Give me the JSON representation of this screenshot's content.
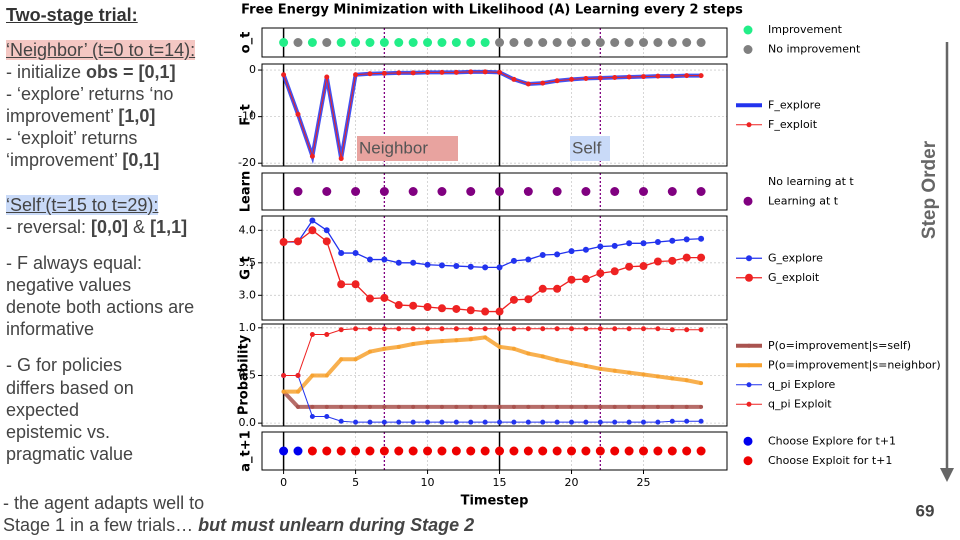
{
  "slide": {
    "lines": [
      {
        "style": "heading",
        "segments": [
          {
            "text": "Two-stage trial:",
            "bold": true
          }
        ]
      },
      {
        "style": "neighbor",
        "segments": [
          {
            "text": "‘Neighbor’ (t=0 to t=14):"
          }
        ]
      },
      {
        "segments": [
          {
            "text": "- initialize "
          },
          {
            "text": "obs = [0,1]",
            "bold": true
          }
        ]
      },
      {
        "segments": [
          {
            "text": "- ‘explore’ returns ‘no"
          }
        ]
      },
      {
        "segments": [
          {
            "text": "improvement’ "
          },
          {
            "text": "[1,0]",
            "bold": true
          }
        ]
      },
      {
        "segments": [
          {
            "text": "- ‘exploit’ returns"
          }
        ]
      },
      {
        "segments": [
          {
            "text": "‘improvement’ "
          },
          {
            "text": "[0,1]",
            "bold": true
          }
        ]
      },
      {
        "style": "self",
        "segments": [
          {
            "text": "‘Self’(t=15 to t=29):"
          }
        ]
      },
      {
        "segments": [
          {
            "text": "- reversal: "
          },
          {
            "text": "[0,0]",
            "bold": true
          },
          {
            "text": " & "
          },
          {
            "text": "[1,1]",
            "bold": true
          }
        ]
      },
      {
        "segments": [
          {
            "text": "- F always equal:"
          }
        ]
      },
      {
        "segments": [
          {
            "text": "negative values"
          }
        ]
      },
      {
        "segments": [
          {
            "text": "denote both actions are"
          }
        ]
      },
      {
        "segments": [
          {
            "text": "informative"
          }
        ]
      },
      {
        "segments": [
          {
            "text": "- G for policies"
          }
        ]
      },
      {
        "segments": [
          {
            "text": "differs based on"
          }
        ]
      },
      {
        "segments": [
          {
            "text": "expected"
          }
        ]
      },
      {
        "segments": [
          {
            "text": "epistemic vs."
          }
        ]
      },
      {
        "segments": [
          {
            "text": "pragmatic value"
          }
        ]
      },
      {
        "segments": [
          {
            "text": "- the agent adapts well to"
          }
        ]
      },
      {
        "segments": [
          {
            "text": "Stage 1 in a few trials… "
          },
          {
            "text": "but must unlearn during Stage 2",
            "bold": true,
            "italic": true
          }
        ]
      }
    ],
    "side_label": "Step Order",
    "page_number": "69"
  },
  "stage_lines": [
    0,
    15
  ],
  "mid_lines": [
    7,
    22
  ],
  "chart_data": [
    {
      "type": "dot",
      "title": "Free Energy Minimization with Likelihood (A) Learning every 2 steps",
      "ylabel": "o_t",
      "xlim": [
        -1.5,
        30.8
      ],
      "xticks": [
        0,
        5,
        10,
        15,
        20,
        25
      ],
      "grid": true,
      "x": [
        0,
        1,
        2,
        3,
        4,
        5,
        6,
        7,
        8,
        9,
        10,
        11,
        12,
        13,
        14,
        15,
        16,
        17,
        18,
        19,
        20,
        21,
        22,
        23,
        24,
        25,
        26,
        27,
        28,
        29
      ],
      "classes": [
        {
          "name": "Improvement",
          "color": "#22ee88"
        },
        {
          "name": "No improvement",
          "color": "#808080"
        }
      ],
      "values": [
        0,
        1,
        0,
        1,
        0,
        0,
        0,
        0,
        0,
        0,
        0,
        0,
        0,
        0,
        0,
        1,
        1,
        1,
        1,
        1,
        1,
        1,
        1,
        1,
        1,
        1,
        1,
        1,
        1,
        1
      ]
    },
    {
      "type": "line",
      "ylabel": "F_t",
      "xlim": [
        -1.5,
        30.8
      ],
      "xticks": [
        0,
        5,
        10,
        15,
        20,
        25
      ],
      "grid": true,
      "ylim": [
        -20.6,
        1.3
      ],
      "yticks": [
        -20,
        -10,
        0
      ],
      "annotations": [
        "Neighbor",
        "Self"
      ],
      "x": [
        0,
        1,
        2,
        3,
        4,
        5,
        6,
        7,
        8,
        9,
        10,
        11,
        12,
        13,
        14,
        15,
        16,
        17,
        18,
        19,
        20,
        21,
        22,
        23,
        24,
        25,
        26,
        27,
        28,
        29
      ],
      "series": [
        {
          "name": "F_explore",
          "color": "#2233ee",
          "width": 4,
          "marker": 0,
          "values": [
            -1,
            -9.5,
            -18.5,
            -1.5,
            -19,
            -1,
            -0.8,
            -0.7,
            -0.6,
            -0.6,
            -0.5,
            -0.5,
            -0.5,
            -0.4,
            -0.4,
            -0.5,
            -2,
            -3,
            -2.8,
            -2.3,
            -2,
            -1.8,
            -1.7,
            -1.6,
            -1.5,
            -1.4,
            -1.3,
            -1.3,
            -1.2,
            -1.2
          ]
        },
        {
          "name": "F_exploit",
          "color": "#ee2222",
          "width": 1,
          "marker": 2.5,
          "values": [
            -1,
            -9.5,
            -18.5,
            -1.5,
            -19,
            -1,
            -0.8,
            -0.7,
            -0.6,
            -0.6,
            -0.5,
            -0.5,
            -0.5,
            -0.4,
            -0.4,
            -0.5,
            -2,
            -3,
            -2.8,
            -2.3,
            -2,
            -1.8,
            -1.7,
            -1.6,
            -1.5,
            -1.4,
            -1.3,
            -1.3,
            -1.2,
            -1.2
          ]
        }
      ]
    },
    {
      "type": "dot",
      "ylabel": "Learn",
      "xlim": [
        -1.5,
        30.8
      ],
      "xticks": [
        0,
        5,
        10,
        15,
        20,
        25
      ],
      "grid": true,
      "x": [
        0,
        1,
        2,
        3,
        4,
        5,
        6,
        7,
        8,
        9,
        10,
        11,
        12,
        13,
        14,
        15,
        16,
        17,
        18,
        19,
        20,
        21,
        22,
        23,
        24,
        25,
        26,
        27,
        28,
        29
      ],
      "classes": [
        {
          "name": "No learning at t",
          "color": "none"
        },
        {
          "name": "Learning at t",
          "color": "#800080"
        }
      ],
      "values": [
        0,
        1,
        0,
        1,
        0,
        1,
        0,
        1,
        0,
        1,
        0,
        1,
        0,
        1,
        0,
        1,
        0,
        1,
        0,
        1,
        0,
        1,
        0,
        1,
        0,
        1,
        0,
        1,
        0,
        1
      ]
    },
    {
      "type": "line",
      "ylabel": "G_t",
      "xlim": [
        -1.5,
        30.8
      ],
      "xticks": [
        0,
        5,
        10,
        15,
        20,
        25
      ],
      "grid": true,
      "ylim": [
        2.62,
        4.22
      ],
      "yticks": [
        {
          "value": 3,
          "label": "3.0"
        },
        3.5,
        {
          "value": 4,
          "label": "4.0"
        }
      ],
      "x": [
        0,
        1,
        2,
        3,
        4,
        5,
        6,
        7,
        8,
        9,
        10,
        11,
        12,
        13,
        14,
        15,
        16,
        17,
        18,
        19,
        20,
        21,
        22,
        23,
        24,
        25,
        26,
        27,
        28,
        29
      ],
      "series": [
        {
          "name": "G_explore",
          "color": "#2233ee",
          "width": 1.3,
          "marker": 3,
          "values": [
            3.82,
            3.82,
            4.15,
            4.0,
            3.65,
            3.65,
            3.55,
            3.55,
            3.5,
            3.5,
            3.47,
            3.46,
            3.45,
            3.44,
            3.43,
            3.43,
            3.53,
            3.55,
            3.62,
            3.63,
            3.68,
            3.7,
            3.75,
            3.76,
            3.8,
            3.8,
            3.82,
            3.84,
            3.86,
            3.87
          ]
        },
        {
          "name": "G_exploit",
          "color": "#ee2222",
          "width": 1.3,
          "marker": 4,
          "values": [
            3.82,
            3.83,
            4.0,
            3.83,
            3.17,
            3.17,
            2.95,
            2.96,
            2.85,
            2.84,
            2.82,
            2.8,
            2.79,
            2.77,
            2.75,
            2.75,
            2.93,
            2.94,
            3.1,
            3.1,
            3.24,
            3.25,
            3.34,
            3.37,
            3.44,
            3.45,
            3.52,
            3.53,
            3.58,
            3.58
          ]
        }
      ]
    },
    {
      "type": "line",
      "ylabel": "Probability",
      "xlim": [
        -1.5,
        30.8
      ],
      "xticks": [
        0,
        5,
        10,
        15,
        20,
        25
      ],
      "grid": true,
      "ylim": [
        -0.03,
        1.04
      ],
      "yticks": [
        {
          "value": 0,
          "label": "0.0"
        },
        0.5,
        {
          "value": 1,
          "label": "1.0"
        }
      ],
      "x": [
        0,
        1,
        2,
        3,
        4,
        5,
        6,
        7,
        8,
        9,
        10,
        11,
        12,
        13,
        14,
        15,
        16,
        17,
        18,
        19,
        20,
        21,
        22,
        23,
        24,
        25,
        26,
        27,
        28,
        29
      ],
      "series": [
        {
          "name": "P(o=improvement|s=self)",
          "color": "#a9534f",
          "width": 4,
          "marker": 2,
          "values": [
            0.33,
            0.17,
            0.17,
            0.17,
            0.17,
            0.17,
            0.17,
            0.17,
            0.17,
            0.17,
            0.17,
            0.17,
            0.17,
            0.17,
            0.17,
            0.17,
            0.17,
            0.17,
            0.17,
            0.17,
            0.17,
            0.17,
            0.17,
            0.17,
            0.17,
            0.17,
            0.17,
            0.17,
            0.17,
            0.17
          ]
        },
        {
          "name": "P(o=improvement|s=neighbor)",
          "color": "#f7a230",
          "width": 4,
          "marker": 2,
          "values": [
            0.33,
            0.33,
            0.5,
            0.5,
            0.67,
            0.67,
            0.75,
            0.78,
            0.8,
            0.83,
            0.85,
            0.86,
            0.87,
            0.88,
            0.9,
            0.8,
            0.78,
            0.73,
            0.7,
            0.66,
            0.63,
            0.6,
            0.57,
            0.55,
            0.53,
            0.51,
            0.49,
            0.47,
            0.45,
            0.42
          ]
        },
        {
          "name": "q_pi Explore",
          "color": "#2233ee",
          "width": 1,
          "marker": 2.5,
          "values": [
            0.5,
            0.5,
            0.07,
            0.07,
            0.02,
            0.01,
            0.01,
            0.01,
            0.01,
            0.01,
            0.01,
            0.01,
            0.01,
            0.01,
            0.01,
            0.01,
            0.01,
            0.01,
            0.01,
            0.01,
            0.01,
            0.01,
            0.01,
            0.01,
            0.01,
            0.01,
            0.01,
            0.02,
            0.02,
            0.02
          ]
        },
        {
          "name": "q_pi Exploit",
          "color": "#ee2222",
          "width": 1,
          "marker": 2.5,
          "values": [
            0.5,
            0.5,
            0.93,
            0.93,
            0.98,
            0.99,
            0.99,
            0.99,
            0.99,
            0.99,
            0.99,
            0.99,
            0.99,
            0.99,
            0.99,
            0.99,
            0.99,
            0.99,
            0.99,
            0.99,
            0.99,
            0.99,
            0.99,
            0.99,
            0.99,
            0.99,
            0.99,
            0.98,
            0.98,
            0.98
          ]
        }
      ]
    },
    {
      "type": "dot",
      "ylabel": "a_t+1",
      "xlabel": "Timestep",
      "xlim": [
        -1.5,
        30.8
      ],
      "xticks": [
        0,
        5,
        10,
        15,
        20,
        25
      ],
      "grid": true,
      "x": [
        0,
        1,
        2,
        3,
        4,
        5,
        6,
        7,
        8,
        9,
        10,
        11,
        12,
        13,
        14,
        15,
        16,
        17,
        18,
        19,
        20,
        21,
        22,
        23,
        24,
        25,
        26,
        27,
        28,
        29
      ],
      "classes": [
        {
          "name": "Choose Explore for t+1",
          "color": "#0000ee"
        },
        {
          "name": "Choose Exploit for t+1",
          "color": "#ee0000"
        }
      ],
      "values": [
        0,
        0,
        1,
        1,
        1,
        1,
        1,
        1,
        1,
        1,
        1,
        1,
        1,
        1,
        1,
        1,
        1,
        1,
        1,
        1,
        1,
        1,
        1,
        1,
        1,
        1,
        1,
        1,
        1,
        1
      ]
    }
  ]
}
